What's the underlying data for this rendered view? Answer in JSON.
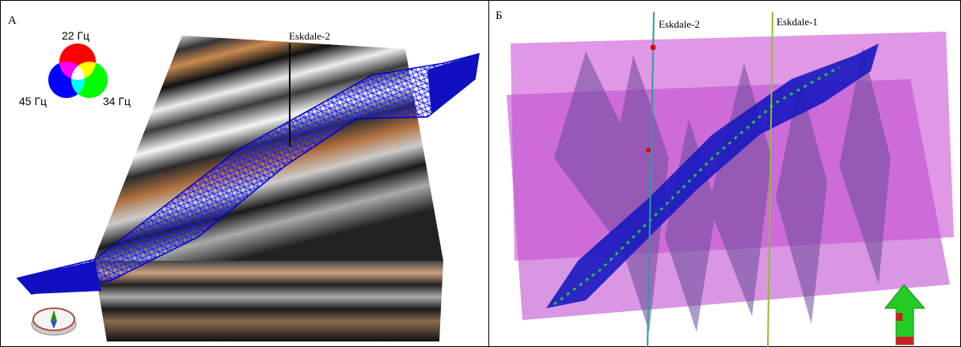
{
  "panels": [
    {
      "label": "А",
      "legend": [
        "22 Гц",
        "45 Гц",
        "34 Гц"
      ],
      "wells": [
        "Eskdale-2"
      ]
    },
    {
      "label": "Б",
      "wells": [
        "Eskdale-2",
        "Eskdale-1"
      ]
    }
  ]
}
